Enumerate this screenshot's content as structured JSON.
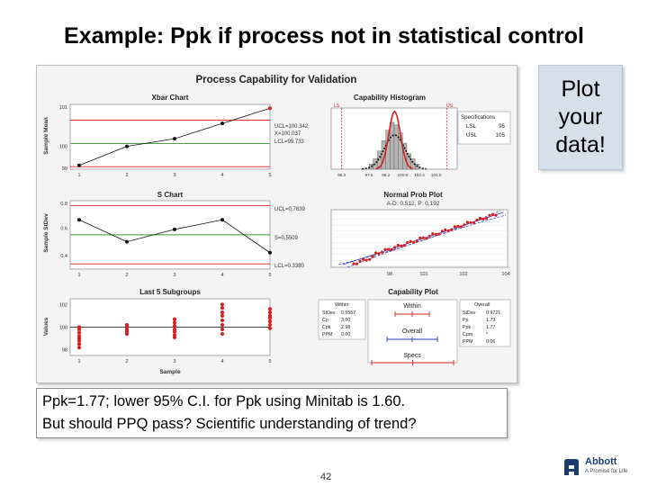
{
  "slide": {
    "title": "Example: Ppk if process not in statistical control",
    "callout": "Plot\nyour\ndata!",
    "note_line1": "Ppk=1.77; lower 95% C.I. for Ppk using Minitab is 1.60.",
    "note_line2": "But should PPQ pass?  Scientific understanding of trend?",
    "page_number": "42",
    "logo_name": "Abbott",
    "logo_tagline": "A Promise for Life"
  },
  "colors": {
    "red": "#d42020",
    "green": "#2e9a2e",
    "blue": "#2b3fb5",
    "hist_bar": "#b5b5b5"
  },
  "minitab": {
    "title": "Process Capability for Validation",
    "xbar_title": "Xbar Chart",
    "hist_title": "Capability Histogram",
    "s_title": "S Chart",
    "normprob_title": "Normal Prob Plot",
    "normprob_sub": "A-D: 0.512, P: 0.192",
    "last5_title": "Last 5 Subgroups",
    "capplot_title": "Capability Plot",
    "xbar_ucl": "UCL=100.342",
    "xbar_center": "X=100.037",
    "xbar_lcl": "LCL=99.733",
    "s_ucl": "UCL=0.7639",
    "s_center": "S=0.5509",
    "s_lcl": "LCL=0.3380",
    "ylabel_mean": "Sample Mean",
    "ylabel_stdev": "Sample StDev",
    "ylabel_values": "Values",
    "xlabel_sample": "Sample",
    "hist_lsl_mark": "LS",
    "hist_usl_mark": "US",
    "hist_ticks": [
      "95.0",
      "97.6",
      "99.2",
      "100.8",
      "102.4",
      "104.0"
    ],
    "spec": {
      "header": "Specifications",
      "lsl_label": "LSL",
      "lsl_value": "95",
      "usl_label": "USL",
      "usl_value": "105"
    },
    "within": {
      "header": "Within",
      "rows": [
        [
          "StDev",
          "0.5557"
        ],
        [
          "Cp",
          "3.00"
        ],
        [
          "Cpk",
          "2.98"
        ],
        [
          "PPM",
          "0.00"
        ]
      ]
    },
    "overall": {
      "header": "Overall",
      "rows": [
        [
          "StDev",
          "0.9721"
        ],
        [
          "Pp",
          "1.79"
        ],
        [
          "Ppk",
          "1.77"
        ],
        [
          "Cpm",
          "*"
        ],
        [
          "PPM",
          "0.06"
        ]
      ]
    },
    "cap_labels": {
      "within": "Within",
      "overall": "Overall",
      "specs": "Specs"
    }
  },
  "chart_data": [
    {
      "type": "line",
      "title": "Xbar Chart",
      "ylabel": "Sample Mean",
      "x": [
        1,
        2,
        3,
        4,
        5
      ],
      "series": [
        {
          "values": [
            99.75,
            100.0,
            100.1,
            100.3,
            100.5
          ]
        }
      ],
      "ucl": 100.342,
      "center": 100.037,
      "lcl": 99.733,
      "ylim": [
        99.7,
        100.55
      ],
      "yticks": [
        "101",
        "100",
        "99"
      ]
    },
    {
      "type": "line",
      "title": "S Chart",
      "ylabel": "Sample StDev",
      "x": [
        1,
        2,
        3,
        4,
        5
      ],
      "series": [
        {
          "values": [
            0.66,
            0.5,
            0.59,
            0.66,
            0.42
          ]
        }
      ],
      "ucl": 0.7639,
      "center": 0.5509,
      "lcl": 0.338,
      "ylim": [
        0.3,
        0.8
      ],
      "yticks": [
        "0.8",
        "0.6",
        "0.4"
      ]
    },
    {
      "type": "scatter",
      "title": "Last 5 Subgroups",
      "ylabel": "Values",
      "xlabel": "Sample",
      "x": [
        1,
        2,
        3,
        4,
        5
      ],
      "ylim": [
        97.5,
        102.5
      ],
      "yticks": [
        "102",
        "100",
        "98"
      ],
      "groups": [
        [
          98.2,
          98.5,
          98.8,
          99.0,
          99.2,
          99.5,
          99.8,
          100.0
        ],
        [
          99.4,
          99.6,
          99.8,
          100.0,
          100.2
        ],
        [
          99.1,
          99.3,
          99.6,
          99.8,
          100.1,
          100.4,
          100.7
        ],
        [
          99.4,
          99.8,
          100.2,
          100.6,
          101.0,
          101.3,
          101.7,
          102.0
        ],
        [
          99.9,
          100.2,
          100.5,
          100.8,
          101.0,
          101.3,
          101.6
        ]
      ]
    },
    {
      "type": "bar",
      "title": "Capability Histogram",
      "categories": [
        "97.8",
        "98.2",
        "98.6",
        "99.0",
        "99.4",
        "99.8",
        "100.2",
        "100.6",
        "101.0",
        "101.4",
        "101.8",
        "102.2"
      ],
      "values": [
        2,
        4,
        7,
        11,
        15,
        18,
        17,
        14,
        10,
        6,
        4,
        2
      ],
      "lsl": 95,
      "usl": 105,
      "xticks": [
        "95.0",
        "97.6",
        "99.2",
        "100.8",
        "102.4",
        "104.0"
      ]
    },
    {
      "type": "scatter",
      "title": "Normal Prob Plot",
      "subtitle": "A-D: 0.512, P: 0.192",
      "xticks": [
        "98",
        "101",
        "102",
        "104"
      ]
    }
  ]
}
